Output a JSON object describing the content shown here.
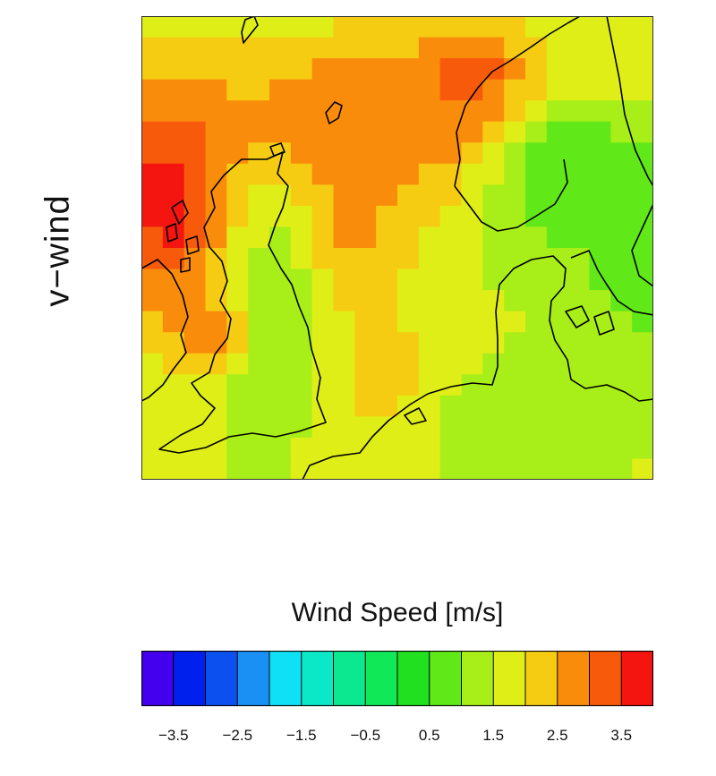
{
  "title": "v−wind",
  "colorbar": {
    "label": "Wind Speed [m/s]",
    "min": -4,
    "max": 4,
    "step": 0.5,
    "colors": [
      "#4400ee",
      "#0020ee",
      "#0c50f0",
      "#1a90f5",
      "#10e0f5",
      "#0ae8c8",
      "#0ce890",
      "#10e858",
      "#20e020",
      "#60e818",
      "#a8ee18",
      "#e0ee18",
      "#f5cc12",
      "#fa8c0c",
      "#f85a0c",
      "#f41410"
    ],
    "tick_labels": [
      "−3.5",
      "−2.5",
      "−1.5",
      "−0.5",
      "0.5",
      "1.5",
      "2.5",
      "3.5"
    ],
    "tick_values": [
      -3.5,
      -2.5,
      -1.5,
      -0.5,
      0.5,
      1.5,
      2.5,
      3.5
    ]
  },
  "map": {
    "region": "North Sea / British Isles / Scandinavia",
    "grid_cols": 24,
    "grid_rows": 22,
    "field": {
      "base": 1.6,
      "blobs": [
        {
          "value": 3.9,
          "cx": 1.0,
          "cy": 8.0,
          "rx": 3.5,
          "ry": 5.5
        },
        {
          "value": 3.0,
          "cx": 15.0,
          "cy": 4.0,
          "rx": 9.0,
          "ry": 4.0
        },
        {
          "value": 3.8,
          "cx": 15.5,
          "cy": 3.0,
          "rx": 2.0,
          "ry": 2.0
        },
        {
          "value": 3.0,
          "cx": 9.0,
          "cy": 5.0,
          "rx": 6.0,
          "ry": 3.0
        },
        {
          "value": 2.7,
          "cx": 9.0,
          "cy": 9.0,
          "rx": 3.5,
          "ry": 5.0
        },
        {
          "value": 2.3,
          "cx": 11.0,
          "cy": 17.0,
          "rx": 3.5,
          "ry": 3.0
        },
        {
          "value": 0.5,
          "cx": 19.5,
          "cy": 7.0,
          "rx": 4.0,
          "ry": 4.5
        },
        {
          "value": 0.6,
          "cx": 23.0,
          "cy": 10.0,
          "rx": 2.5,
          "ry": 6.0
        },
        {
          "value": 1.0,
          "cx": 5.5,
          "cy": 14.0,
          "rx": 2.5,
          "ry": 6.0
        },
        {
          "value": 1.0,
          "cx": 17.0,
          "cy": 19.0,
          "rx": 4.0,
          "ry": 3.0
        },
        {
          "value": 2.9,
          "cx": 2.5,
          "cy": 14.5,
          "rx": 1.8,
          "ry": 2.0
        }
      ]
    },
    "coastline_color": "#000000"
  }
}
